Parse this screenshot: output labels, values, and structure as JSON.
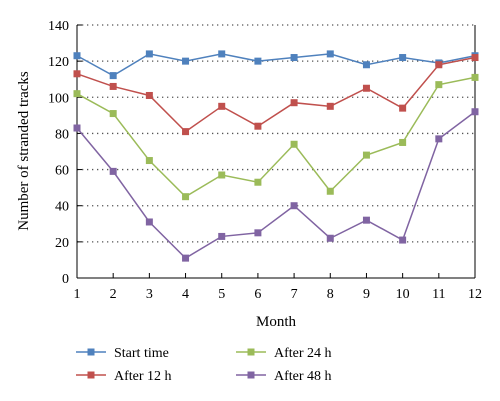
{
  "chart_data": {
    "type": "line",
    "title": "",
    "xlabel": "Month",
    "ylabel": "Number of stranded tracks",
    "x": [
      1,
      2,
      3,
      4,
      5,
      6,
      7,
      8,
      9,
      10,
      11,
      12
    ],
    "xlim": [
      1,
      12
    ],
    "ylim": [
      0,
      140
    ],
    "yticks": [
      0,
      20,
      40,
      60,
      80,
      100,
      120,
      140
    ],
    "grid": "horizontal-dotted",
    "legend_position": "bottom",
    "series": [
      {
        "name": "Start time",
        "color": "#4f81bd",
        "marker": "square",
        "values": [
          123,
          112,
          124,
          120,
          124,
          120,
          122,
          124,
          118,
          122,
          119,
          123
        ]
      },
      {
        "name": "After 12 h",
        "color": "#c0504d",
        "marker": "square",
        "values": [
          113,
          106,
          101,
          81,
          95,
          84,
          97,
          95,
          105,
          94,
          118,
          122
        ]
      },
      {
        "name": "After 24 h",
        "color": "#9bbb59",
        "marker": "square",
        "values": [
          102,
          91,
          65,
          45,
          57,
          53,
          74,
          48,
          68,
          75,
          107,
          111
        ]
      },
      {
        "name": "After 48 h",
        "color": "#8064a2",
        "marker": "square",
        "values": [
          83,
          59,
          31,
          11,
          23,
          25,
          40,
          22,
          32,
          21,
          77,
          92
        ]
      }
    ]
  }
}
